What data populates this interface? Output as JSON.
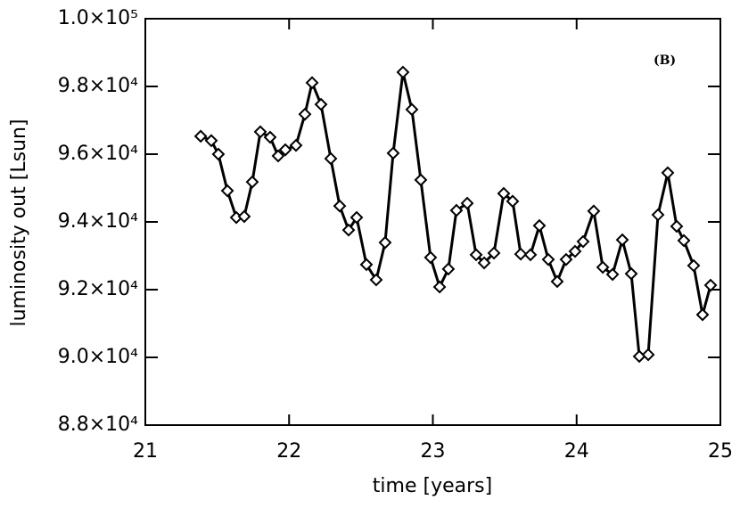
{
  "chart_data": {
    "type": "line",
    "xlabel": "time [years]",
    "ylabel": "luminosity out [Lsun]",
    "annotation": "(B)",
    "color": "#000000",
    "marker": "diamond",
    "x": [
      21.385,
      21.459,
      21.508,
      21.571,
      21.633,
      21.688,
      21.744,
      21.8,
      21.868,
      21.924,
      21.974,
      22.048,
      22.11,
      22.16,
      22.222,
      22.29,
      22.352,
      22.414,
      22.47,
      22.538,
      22.606,
      22.668,
      22.724,
      22.792,
      22.854,
      22.916,
      22.984,
      23.047,
      23.108,
      23.164,
      23.239,
      23.301,
      23.357,
      23.425,
      23.493,
      23.555,
      23.611,
      23.679,
      23.741,
      23.803,
      23.865,
      23.927,
      23.989,
      24.045,
      24.119,
      24.182,
      24.25,
      24.318,
      24.38,
      24.436,
      24.498,
      24.566,
      24.634,
      24.696,
      24.746,
      24.814,
      24.876,
      24.932
    ],
    "values": [
      96530,
      96400,
      96000,
      94920,
      94130,
      94160,
      95180,
      96660,
      96500,
      95950,
      96130,
      96260,
      97180,
      98110,
      97470,
      95870,
      94470,
      93760,
      94130,
      92740,
      92290,
      93390,
      96030,
      98420,
      97320,
      95240,
      92950,
      92080,
      92610,
      94340,
      94550,
      93030,
      92790,
      93080,
      94840,
      94610,
      93050,
      93030,
      93890,
      92890,
      92240,
      92890,
      93130,
      93420,
      94320,
      92660,
      92450,
      93470,
      92470,
      90030,
      90080,
      94210,
      95450,
      93870,
      93450,
      92710,
      91260,
      92130
    ],
    "xlim": [
      21,
      25
    ],
    "xticks": [
      21,
      22,
      23,
      24,
      25
    ],
    "ylim": [
      88000,
      100000
    ],
    "yticks": [
      {
        "value": 88000,
        "label": "8.8×10⁴"
      },
      {
        "value": 90000,
        "label": "9.0×10⁴"
      },
      {
        "value": 92000,
        "label": "9.2×10⁴"
      },
      {
        "value": 94000,
        "label": "9.4×10⁴"
      },
      {
        "value": 96000,
        "label": "9.6×10⁴"
      },
      {
        "value": 98000,
        "label": "9.8×10⁴"
      },
      {
        "value": 100000,
        "label": "1.0×10⁵"
      }
    ]
  }
}
